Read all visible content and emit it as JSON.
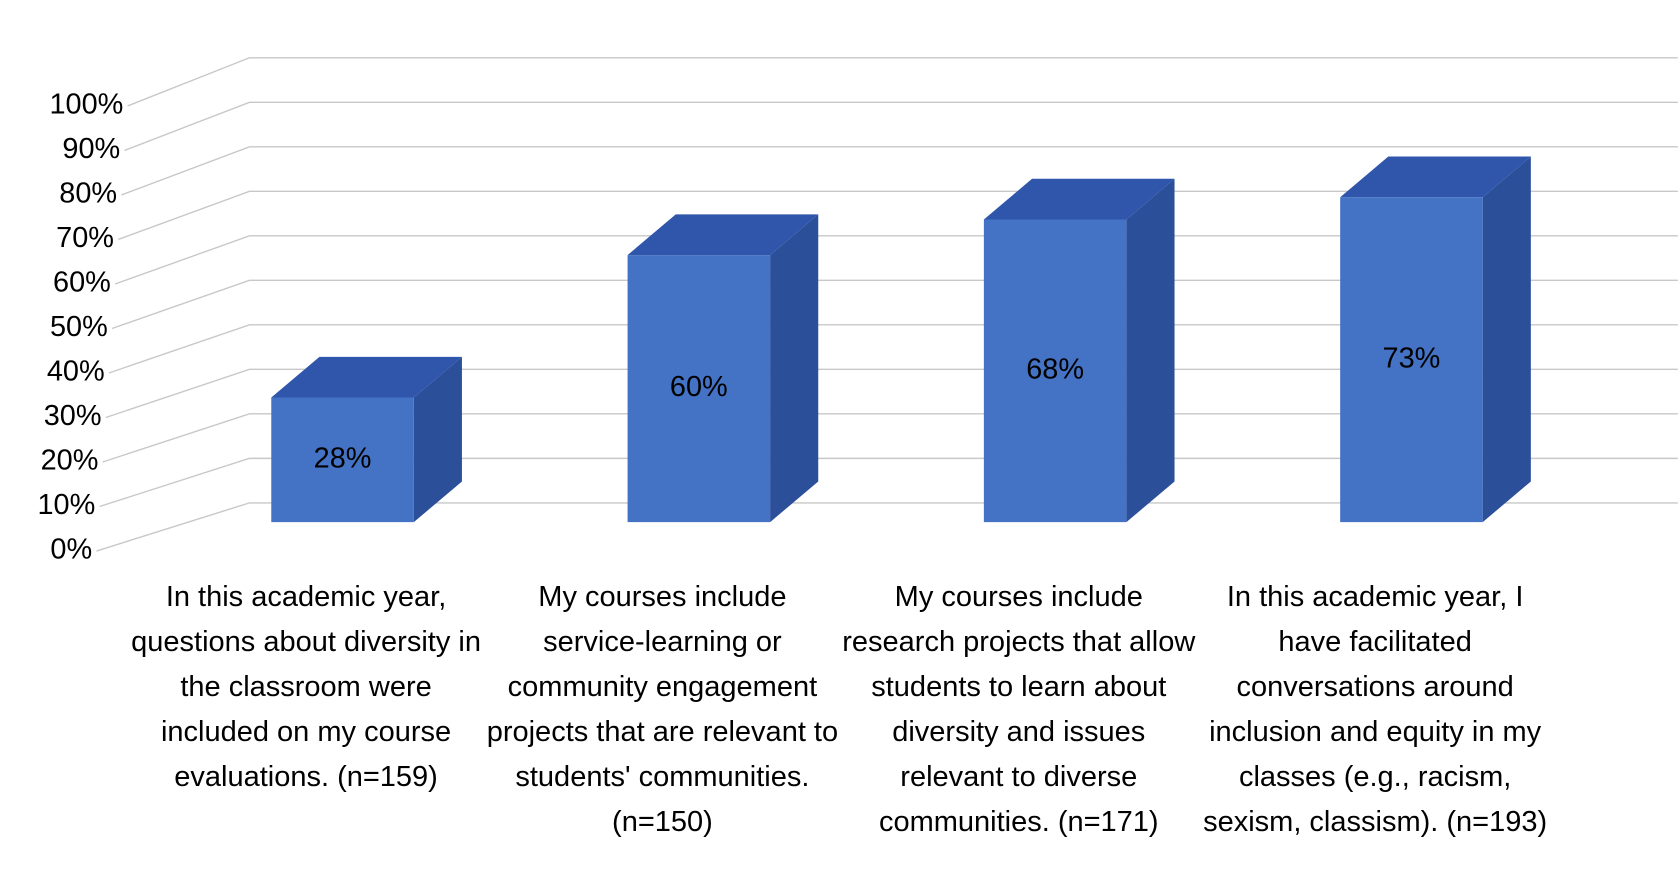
{
  "chart_data": {
    "type": "bar3d",
    "categories": [
      "In this academic year, questions about diversity in the classroom were included on my course evaluations. (n=159)",
      "My courses include service-learning or community engagement projects that are relevant to students' communities. (n=150)",
      "My courses include research projects that allow students to learn about diversity and issues relevant to diverse communities. (n=171)",
      "In this academic year, I have facilitated conversations around inclusion and equity in my classes (e.g., racism, sexism, classism). (n=193)"
    ],
    "values": [
      28,
      60,
      68,
      73
    ],
    "value_labels": [
      "28%",
      "60%",
      "68%",
      "73%"
    ],
    "color": "#4472c4",
    "ylim": [
      0,
      100
    ],
    "yticks": [
      {
        "value": 0,
        "label": "0%"
      },
      {
        "value": 10,
        "label": "10%"
      },
      {
        "value": 20,
        "label": "20%"
      },
      {
        "value": 30,
        "label": "30%"
      },
      {
        "value": 40,
        "label": "40%"
      },
      {
        "value": 50,
        "label": "50%"
      },
      {
        "value": 60,
        "label": "60%"
      },
      {
        "value": 70,
        "label": "70%"
      },
      {
        "value": 80,
        "label": "80%"
      },
      {
        "value": 90,
        "label": "90%"
      },
      {
        "value": 100,
        "label": "100%"
      }
    ],
    "grid": true
  }
}
